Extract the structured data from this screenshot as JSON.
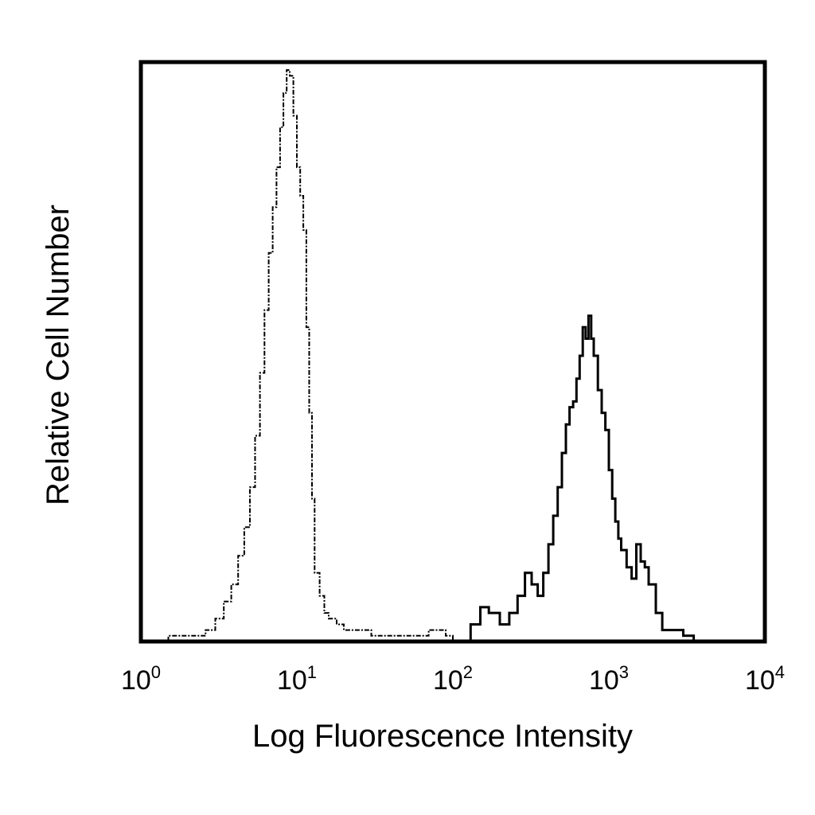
{
  "chart_data": {
    "type": "area",
    "title": "",
    "xlabel": "Log Fluorescence Intensity",
    "ylabel": "Relative Cell Number",
    "xscale": "log",
    "xlim": [
      1,
      10000
    ],
    "ylim": [
      0,
      1
    ],
    "grid": false,
    "legend": "none",
    "x_ticks": [
      {
        "base": "10",
        "exp": "0"
      },
      {
        "base": "10",
        "exp": "1"
      },
      {
        "base": "10",
        "exp": "2"
      },
      {
        "base": "10",
        "exp": "3"
      },
      {
        "base": "10",
        "exp": "4"
      }
    ],
    "series": [
      {
        "style": "dashed",
        "x": [
          1.5,
          2.2,
          2.6,
          3.0,
          3.4,
          3.8,
          4.2,
          4.6,
          5.0,
          5.4,
          5.8,
          6.2,
          6.6,
          7.0,
          7.4,
          7.8,
          8.2,
          8.6,
          9.0,
          9.5,
          10.0,
          10.5,
          11.0,
          11.5,
          12.0,
          12.5,
          13.0,
          14.0,
          15.0,
          16.0,
          18.0,
          20.0,
          25.0,
          30.0,
          40.0,
          50.0,
          60.0,
          70.0,
          90.0,
          100.0
        ],
        "y": [
          0.01,
          0.01,
          0.02,
          0.04,
          0.07,
          0.1,
          0.15,
          0.2,
          0.27,
          0.36,
          0.47,
          0.58,
          0.68,
          0.76,
          0.83,
          0.9,
          0.96,
          1.0,
          0.99,
          0.92,
          0.83,
          0.78,
          0.72,
          0.55,
          0.4,
          0.25,
          0.12,
          0.08,
          0.05,
          0.04,
          0.03,
          0.02,
          0.02,
          0.01,
          0.01,
          0.01,
          0.01,
          0.02,
          0.01,
          0.0
        ]
      },
      {
        "style": "solid",
        "x": [
          100,
          130,
          150,
          170,
          200,
          230,
          260,
          290,
          320,
          350,
          380,
          410,
          440,
          470,
          500,
          530,
          560,
          590,
          620,
          650,
          680,
          710,
          740,
          770,
          800,
          850,
          900,
          950,
          1000,
          1050,
          1100,
          1150,
          1200,
          1300,
          1400,
          1500,
          1600,
          1700,
          1800,
          2000,
          2200,
          2500,
          3000,
          3500
        ],
        "y": [
          0.0,
          0.03,
          0.06,
          0.05,
          0.03,
          0.05,
          0.08,
          0.12,
          0.1,
          0.08,
          0.12,
          0.17,
          0.22,
          0.27,
          0.33,
          0.38,
          0.41,
          0.42,
          0.46,
          0.5,
          0.55,
          0.53,
          0.57,
          0.53,
          0.5,
          0.44,
          0.4,
          0.37,
          0.3,
          0.25,
          0.21,
          0.18,
          0.16,
          0.13,
          0.11,
          0.17,
          0.14,
          0.13,
          0.1,
          0.05,
          0.02,
          0.02,
          0.01,
          0.0
        ]
      }
    ]
  }
}
